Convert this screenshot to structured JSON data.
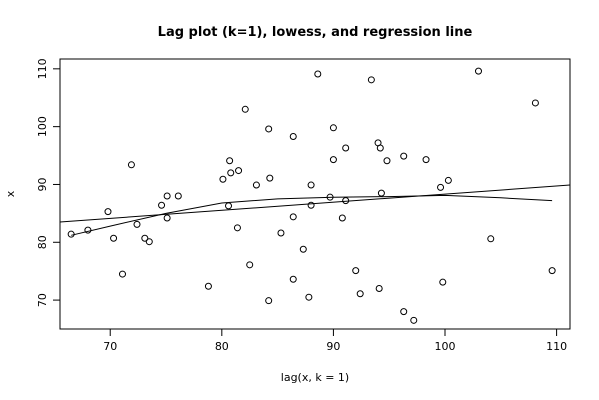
{
  "chart_data": {
    "type": "scatter",
    "title": "Lag plot (k=1), lowess, and regression line",
    "xlabel": "lag(x, k = 1)",
    "ylabel": "x",
    "xlim": [
      65.5,
      111.2
    ],
    "ylim": [
      65.0,
      111.7
    ],
    "xticks": [
      70,
      80,
      90,
      100,
      110
    ],
    "yticks": [
      70,
      80,
      90,
      100,
      110
    ],
    "grid": false,
    "legend": "none",
    "points": [
      {
        "x": 66.5,
        "y": 81.4
      },
      {
        "x": 68.0,
        "y": 82.1
      },
      {
        "x": 69.8,
        "y": 85.3
      },
      {
        "x": 70.3,
        "y": 80.7
      },
      {
        "x": 71.1,
        "y": 74.5
      },
      {
        "x": 71.9,
        "y": 93.4
      },
      {
        "x": 72.4,
        "y": 83.1
      },
      {
        "x": 73.1,
        "y": 80.7
      },
      {
        "x": 73.5,
        "y": 80.1
      },
      {
        "x": 74.6,
        "y": 86.4
      },
      {
        "x": 75.1,
        "y": 88.0
      },
      {
        "x": 75.1,
        "y": 84.2
      },
      {
        "x": 76.1,
        "y": 88.0
      },
      {
        "x": 78.8,
        "y": 72.4
      },
      {
        "x": 80.1,
        "y": 90.9
      },
      {
        "x": 80.6,
        "y": 86.3
      },
      {
        "x": 80.7,
        "y": 94.1
      },
      {
        "x": 80.8,
        "y": 92.0
      },
      {
        "x": 81.4,
        "y": 82.5
      },
      {
        "x": 81.5,
        "y": 92.4
      },
      {
        "x": 82.1,
        "y": 103.0
      },
      {
        "x": 82.5,
        "y": 76.1
      },
      {
        "x": 83.1,
        "y": 89.9
      },
      {
        "x": 84.2,
        "y": 99.6
      },
      {
        "x": 84.3,
        "y": 91.1
      },
      {
        "x": 84.2,
        "y": 69.9
      },
      {
        "x": 85.3,
        "y": 81.6
      },
      {
        "x": 86.4,
        "y": 98.3
      },
      {
        "x": 86.4,
        "y": 84.4
      },
      {
        "x": 86.4,
        "y": 73.6
      },
      {
        "x": 87.3,
        "y": 78.8
      },
      {
        "x": 87.8,
        "y": 70.5
      },
      {
        "x": 88.0,
        "y": 86.4
      },
      {
        "x": 88.0,
        "y": 89.9
      },
      {
        "x": 88.6,
        "y": 109.1
      },
      {
        "x": 89.7,
        "y": 87.8
      },
      {
        "x": 90.0,
        "y": 99.8
      },
      {
        "x": 90.0,
        "y": 94.3
      },
      {
        "x": 90.8,
        "y": 84.2
      },
      {
        "x": 91.1,
        "y": 96.3
      },
      {
        "x": 91.1,
        "y": 87.2
      },
      {
        "x": 92.0,
        "y": 75.1
      },
      {
        "x": 92.4,
        "y": 71.1
      },
      {
        "x": 93.4,
        "y": 108.1
      },
      {
        "x": 94.0,
        "y": 97.2
      },
      {
        "x": 94.2,
        "y": 96.3
      },
      {
        "x": 94.1,
        "y": 72.0
      },
      {
        "x": 94.3,
        "y": 88.5
      },
      {
        "x": 94.8,
        "y": 94.1
      },
      {
        "x": 96.3,
        "y": 94.9
      },
      {
        "x": 96.3,
        "y": 68.0
      },
      {
        "x": 97.2,
        "y": 66.5
      },
      {
        "x": 98.3,
        "y": 94.3
      },
      {
        "x": 99.6,
        "y": 89.5
      },
      {
        "x": 99.8,
        "y": 73.1
      },
      {
        "x": 100.3,
        "y": 90.7
      },
      {
        "x": 103.0,
        "y": 109.6
      },
      {
        "x": 104.1,
        "y": 80.6
      },
      {
        "x": 108.1,
        "y": 104.1
      },
      {
        "x": 109.6,
        "y": 75.1
      }
    ],
    "regression_line": {
      "x": [
        65.5,
        111.2
      ],
      "y": [
        83.5,
        89.9
      ]
    },
    "lowess_line": {
      "x": [
        66.5,
        70.0,
        75.0,
        80.0,
        85.0,
        90.0,
        95.0,
        100.0,
        105.0,
        109.6
      ],
      "y": [
        81.2,
        82.8,
        85.0,
        86.8,
        87.5,
        87.8,
        87.9,
        88.1,
        87.7,
        87.2
      ]
    }
  }
}
